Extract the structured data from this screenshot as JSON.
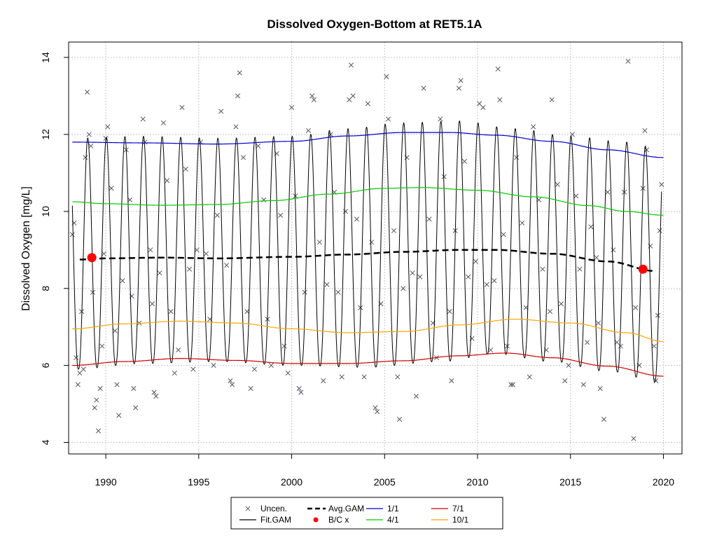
{
  "chart_data": {
    "type": "line",
    "title": "Dissolved Oxygen-Bottom at RET5.1A",
    "xlabel": "",
    "ylabel": "Dissolved Oxygen [mg/L]",
    "xlim": [
      1988.0,
      2021.0
    ],
    "ylim": [
      3.7,
      14.4
    ],
    "xticks": [
      1990,
      1995,
      2000,
      2005,
      2010,
      2015,
      2020
    ],
    "yticks": [
      4,
      6,
      8,
      10,
      12,
      14
    ],
    "grid": true,
    "legend_position": "bottom",
    "colors": {
      "uncen": "#555566",
      "fit_gam": "#000000",
      "avg_gam": "#000000",
      "bc": "#ff0000",
      "p1_1": "#0000cc",
      "p4_1": "#00cc00",
      "p7_1": "#cc0000",
      "p10_1": "#ffa500",
      "grid": "#c8c8c8"
    },
    "legend": [
      {
        "key": "uncen",
        "label": "Uncen.",
        "symbol": "x",
        "color": "#555566"
      },
      {
        "key": "fit",
        "label": "Fit.GAM",
        "symbol": "line",
        "color": "#000000"
      },
      {
        "key": "avg",
        "label": "Avg.GAM",
        "symbol": "dash",
        "color": "#000000"
      },
      {
        "key": "bc",
        "label": "B/C x",
        "symbol": "dot",
        "color": "#ff0000"
      },
      {
        "key": "p1",
        "label": "1/1",
        "symbol": "line",
        "color": "#0000cc"
      },
      {
        "key": "p4",
        "label": "4/1",
        "symbol": "line",
        "color": "#00cc00"
      },
      {
        "key": "p7",
        "label": "7/1",
        "symbol": "line",
        "color": "#cc0000"
      },
      {
        "key": "p10",
        "label": "10/1",
        "symbol": "line",
        "color": "#ffa500"
      }
    ],
    "series": [
      {
        "name": "1/1",
        "color": "#0000cc",
        "x": [
          1988.2,
          1992,
          1996,
          2000,
          2003,
          2006,
          2008.5,
          2011,
          2014,
          2017,
          2020
        ],
        "y": [
          11.8,
          11.78,
          11.75,
          11.82,
          11.96,
          12.05,
          12.05,
          11.98,
          11.82,
          11.6,
          11.4
        ]
      },
      {
        "name": "4/1",
        "color": "#00cc00",
        "x": [
          1988.2,
          1990,
          1993,
          1996,
          1999,
          2002,
          2005,
          2007,
          2010,
          2013,
          2016,
          2018,
          2020
        ],
        "y": [
          10.25,
          10.2,
          10.16,
          10.18,
          10.28,
          10.45,
          10.6,
          10.62,
          10.55,
          10.38,
          10.15,
          10.0,
          9.9
        ]
      },
      {
        "name": "Avg.GAM",
        "color": "#000000",
        "x": [
          1988.6,
          1990,
          1993,
          1996,
          2000,
          2003,
          2006,
          2009,
          2011,
          2014,
          2017,
          2019.6
        ],
        "y": [
          8.75,
          8.78,
          8.8,
          8.78,
          8.82,
          8.88,
          8.95,
          9.0,
          9.0,
          8.9,
          8.7,
          8.45
        ]
      },
      {
        "name": "10/1",
        "color": "#ffa500",
        "x": [
          1988.2,
          1991,
          1994,
          1997,
          2000,
          2003,
          2006,
          2009,
          2012,
          2015,
          2018,
          2020
        ],
        "y": [
          6.95,
          7.08,
          7.15,
          7.1,
          6.95,
          6.85,
          6.88,
          7.05,
          7.2,
          7.1,
          6.85,
          6.62
        ]
      },
      {
        "name": "7/1",
        "color": "#cc0000",
        "x": [
          1988.2,
          1991,
          1994,
          1997,
          2000,
          2003,
          2006,
          2009,
          2011.5,
          2014,
          2017,
          2020
        ],
        "y": [
          6.0,
          6.1,
          6.18,
          6.13,
          6.05,
          6.05,
          6.12,
          6.25,
          6.32,
          6.2,
          5.98,
          5.72
        ]
      }
    ],
    "fit_gam": {
      "label": "Fit.GAM",
      "color": "#000000",
      "x_start": 1988.2,
      "x_end": 2019.9,
      "min_envelope": {
        "x": [
          1988.2,
          1992,
          1996,
          2000,
          2004,
          2008,
          2011,
          2014,
          2017,
          2020
        ],
        "y": [
          5.9,
          6.05,
          6.1,
          6.0,
          5.95,
          6.1,
          6.3,
          6.1,
          5.85,
          5.55
        ]
      },
      "max_envelope": {
        "x": [
          1988.2,
          1992,
          1996,
          2000,
          2003,
          2006,
          2009,
          2012,
          2015,
          2018,
          2020
        ],
        "y": [
          11.9,
          11.95,
          11.9,
          11.95,
          12.15,
          12.3,
          12.35,
          12.15,
          11.95,
          11.8,
          11.6
        ]
      }
    },
    "bc_points": [
      {
        "x": 1989.25,
        "y": 8.8
      },
      {
        "x": 2018.9,
        "y": 8.5
      }
    ],
    "uncen_points": [
      [
        1988.2,
        9.4
      ],
      [
        1988.3,
        9.7
      ],
      [
        1988.4,
        6.2
      ],
      [
        1988.5,
        5.5
      ],
      [
        1988.6,
        5.8
      ],
      [
        1988.7,
        7.4
      ],
      [
        1988.8,
        5.9
      ],
      [
        1988.9,
        11.4
      ],
      [
        1989.0,
        13.1
      ],
      [
        1989.1,
        12.0
      ],
      [
        1989.2,
        11.7
      ],
      [
        1989.3,
        7.9
      ],
      [
        1989.4,
        4.9
      ],
      [
        1989.5,
        5.1
      ],
      [
        1989.6,
        4.3
      ],
      [
        1989.7,
        5.4
      ],
      [
        1989.8,
        6.5
      ],
      [
        1989.9,
        8.9
      ],
      [
        1990.0,
        11.9
      ],
      [
        1990.1,
        12.2
      ],
      [
        1990.3,
        10.6
      ],
      [
        1990.5,
        6.9
      ],
      [
        1990.6,
        5.5
      ],
      [
        1990.7,
        4.7
      ],
      [
        1990.9,
        8.2
      ],
      [
        1991.1,
        11.6
      ],
      [
        1991.3,
        10.3
      ],
      [
        1991.4,
        7.8
      ],
      [
        1991.5,
        5.4
      ],
      [
        1991.6,
        4.9
      ],
      [
        1991.8,
        7.1
      ],
      [
        1992.0,
        12.4
      ],
      [
        1992.1,
        11.8
      ],
      [
        1992.4,
        9.0
      ],
      [
        1992.5,
        7.6
      ],
      [
        1992.6,
        5.3
      ],
      [
        1992.7,
        5.2
      ],
      [
        1992.9,
        8.4
      ],
      [
        1993.1,
        12.3
      ],
      [
        1993.3,
        10.8
      ],
      [
        1993.5,
        7.4
      ],
      [
        1993.7,
        5.8
      ],
      [
        1993.9,
        6.4
      ],
      [
        1994.1,
        12.7
      ],
      [
        1994.3,
        11.1
      ],
      [
        1994.5,
        8.5
      ],
      [
        1994.7,
        5.9
      ],
      [
        1994.9,
        9.0
      ],
      [
        1995.1,
        11.8
      ],
      [
        1995.4,
        8.9
      ],
      [
        1995.6,
        7.2
      ],
      [
        1995.8,
        6.0
      ],
      [
        1996.0,
        9.9
      ],
      [
        1996.2,
        12.6
      ],
      [
        1996.5,
        8.6
      ],
      [
        1996.7,
        5.6
      ],
      [
        1996.8,
        5.5
      ],
      [
        1997.0,
        12.2
      ],
      [
        1997.1,
        13.0
      ],
      [
        1997.2,
        13.6
      ],
      [
        1997.4,
        11.4
      ],
      [
        1997.6,
        7.4
      ],
      [
        1997.8,
        5.4
      ],
      [
        1998.0,
        5.9
      ],
      [
        1998.2,
        11.7
      ],
      [
        1998.5,
        10.3
      ],
      [
        1998.7,
        7.2
      ],
      [
        1998.9,
        6.0
      ],
      [
        1999.2,
        11.5
      ],
      [
        1999.4,
        9.9
      ],
      [
        1999.6,
        6.5
      ],
      [
        1999.8,
        5.8
      ],
      [
        2000.0,
        12.7
      ],
      [
        2000.2,
        10.4
      ],
      [
        2000.4,
        5.4
      ],
      [
        2000.5,
        5.3
      ],
      [
        2000.7,
        7.9
      ],
      [
        2000.9,
        12.1
      ],
      [
        2001.1,
        13.0
      ],
      [
        2001.2,
        12.9
      ],
      [
        2001.5,
        9.2
      ],
      [
        2001.7,
        5.6
      ],
      [
        2001.9,
        8.1
      ],
      [
        2002.1,
        12.0
      ],
      [
        2002.3,
        10.5
      ],
      [
        2002.5,
        7.9
      ],
      [
        2002.7,
        5.7
      ],
      [
        2002.9,
        10.0
      ],
      [
        2003.1,
        12.9
      ],
      [
        2003.2,
        13.8
      ],
      [
        2003.3,
        13.0
      ],
      [
        2003.5,
        9.8
      ],
      [
        2003.7,
        7.5
      ],
      [
        2003.9,
        5.7
      ],
      [
        2004.1,
        12.8
      ],
      [
        2004.3,
        9.2
      ],
      [
        2004.5,
        4.9
      ],
      [
        2004.6,
        4.8
      ],
      [
        2004.8,
        7.6
      ],
      [
        2005.1,
        13.5
      ],
      [
        2005.2,
        12.4
      ],
      [
        2005.5,
        9.5
      ],
      [
        2005.7,
        5.7
      ],
      [
        2005.8,
        4.6
      ],
      [
        2006.0,
        8.0
      ],
      [
        2006.2,
        11.4
      ],
      [
        2006.5,
        8.4
      ],
      [
        2006.7,
        5.2
      ],
      [
        2006.9,
        8.3
      ],
      [
        2007.1,
        13.2
      ],
      [
        2007.4,
        9.8
      ],
      [
        2007.6,
        7.1
      ],
      [
        2007.8,
        6.2
      ],
      [
        2008.0,
        12.4
      ],
      [
        2008.2,
        10.9
      ],
      [
        2008.5,
        7.4
      ],
      [
        2008.6,
        5.6
      ],
      [
        2008.8,
        9.5
      ],
      [
        2009.0,
        13.2
      ],
      [
        2009.1,
        13.4
      ],
      [
        2009.3,
        11.3
      ],
      [
        2009.5,
        8.3
      ],
      [
        2009.7,
        6.7
      ],
      [
        2009.9,
        8.7
      ],
      [
        2010.1,
        12.8
      ],
      [
        2010.3,
        12.7
      ],
      [
        2010.5,
        8.1
      ],
      [
        2010.7,
        6.4
      ],
      [
        2010.9,
        8.2
      ],
      [
        2011.1,
        13.7
      ],
      [
        2011.2,
        12.9
      ],
      [
        2011.4,
        9.4
      ],
      [
        2011.6,
        6.5
      ],
      [
        2011.8,
        5.5
      ],
      [
        2011.9,
        5.5
      ],
      [
        2012.1,
        11.4
      ],
      [
        2012.4,
        9.7
      ],
      [
        2012.6,
        7.5
      ],
      [
        2012.8,
        5.7
      ],
      [
        2013.0,
        12.2
      ],
      [
        2013.3,
        10.3
      ],
      [
        2013.5,
        8.5
      ],
      [
        2013.7,
        6.4
      ],
      [
        2013.9,
        7.4
      ],
      [
        2014.0,
        12.9
      ],
      [
        2014.3,
        10.7
      ],
      [
        2014.5,
        7.6
      ],
      [
        2014.7,
        5.6
      ],
      [
        2014.9,
        6.0
      ],
      [
        2015.1,
        12.0
      ],
      [
        2015.3,
        10.4
      ],
      [
        2015.5,
        8.5
      ],
      [
        2015.7,
        5.5
      ],
      [
        2015.9,
        6.6
      ],
      [
        2016.1,
        9.6
      ],
      [
        2016.4,
        8.8
      ],
      [
        2016.5,
        7.1
      ],
      [
        2016.6,
        5.4
      ],
      [
        2016.8,
        4.6
      ],
      [
        2017.0,
        10.5
      ],
      [
        2017.3,
        9.0
      ],
      [
        2017.5,
        6.6
      ],
      [
        2017.7,
        6.5
      ],
      [
        2017.9,
        10.5
      ],
      [
        2018.1,
        13.9
      ],
      [
        2018.4,
        4.1
      ],
      [
        2018.5,
        7.5
      ],
      [
        2018.7,
        6.0
      ],
      [
        2018.9,
        10.6
      ],
      [
        2019.0,
        12.1
      ],
      [
        2019.1,
        11.6
      ],
      [
        2019.3,
        9.1
      ],
      [
        2019.5,
        6.5
      ],
      [
        2019.6,
        5.6
      ],
      [
        2019.7,
        7.3
      ],
      [
        2019.8,
        9.5
      ],
      [
        2019.9,
        10.7
      ]
    ]
  }
}
